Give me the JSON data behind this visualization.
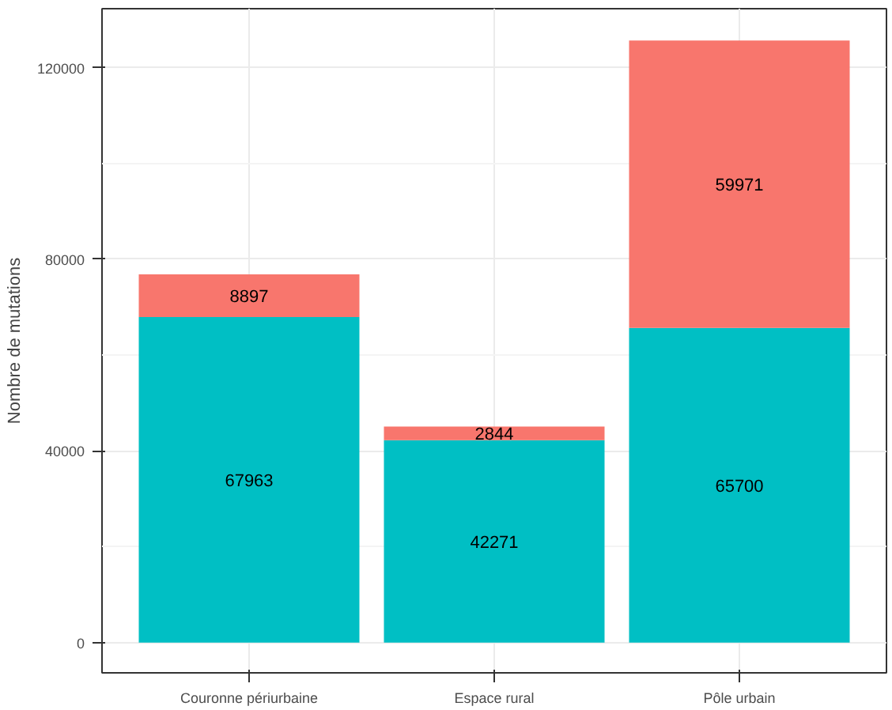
{
  "chart_data": {
    "type": "bar",
    "stacked": true,
    "ylabel": "Nombre de mutations",
    "categories": [
      "Couronne périurbaine",
      "Espace rural",
      "Pôle urbain"
    ],
    "series": [
      {
        "color": "#00bfc4",
        "values": [
          67963,
          42271,
          65700
        ]
      },
      {
        "color": "#f8766d",
        "values": [
          8897,
          2844,
          59971
        ]
      }
    ],
    "ylim": [
      -6300,
      132300
    ],
    "yticks": [
      0,
      40000,
      80000,
      120000
    ],
    "grid": true,
    "data_labels": true
  }
}
